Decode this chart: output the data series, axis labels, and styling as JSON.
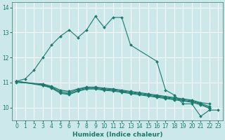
{
  "xlabel": "Humidex (Indice chaleur)",
  "xlim": [
    -0.5,
    23.5
  ],
  "ylim": [
    9.5,
    14.2
  ],
  "yticks": [
    10,
    11,
    12,
    13,
    14
  ],
  "xticks": [
    0,
    1,
    2,
    3,
    4,
    5,
    6,
    7,
    8,
    9,
    10,
    11,
    12,
    13,
    14,
    15,
    16,
    17,
    18,
    19,
    20,
    21,
    22,
    23
  ],
  "background_color": "#cce8ea",
  "grid_color": "#ffffff",
  "line_color": "#1a7a6e",
  "lines": [
    {
      "x": [
        0,
        1,
        2,
        3,
        4,
        5,
        6,
        7,
        8,
        9,
        10,
        11,
        12,
        13,
        16,
        17,
        18,
        19,
        20,
        21,
        22,
        23
      ],
      "y": [
        11.05,
        11.15,
        11.5,
        12.0,
        12.5,
        12.85,
        13.1,
        12.8,
        13.1,
        13.65,
        13.2,
        13.6,
        13.6,
        12.5,
        11.85,
        10.7,
        10.5,
        10.15,
        10.15,
        9.65,
        9.9,
        9.9
      ]
    },
    {
      "x": [
        0,
        3,
        4,
        5,
        6,
        7,
        8,
        9,
        10,
        11,
        12,
        13,
        14,
        15,
        16,
        17,
        18,
        19,
        20,
        21,
        22
      ],
      "y": [
        11.0,
        10.95,
        10.85,
        10.7,
        10.65,
        10.75,
        10.82,
        10.82,
        10.78,
        10.75,
        10.7,
        10.65,
        10.6,
        10.55,
        10.5,
        10.45,
        10.4,
        10.35,
        10.3,
        10.2,
        10.15
      ]
    },
    {
      "x": [
        0,
        3,
        4,
        5,
        6,
        7,
        8,
        9,
        10,
        11,
        12,
        13,
        14,
        15,
        16,
        17,
        18,
        19,
        20,
        21,
        22
      ],
      "y": [
        11.05,
        10.92,
        10.82,
        10.65,
        10.6,
        10.72,
        10.8,
        10.8,
        10.75,
        10.72,
        10.67,
        10.62,
        10.57,
        10.52,
        10.47,
        10.42,
        10.37,
        10.32,
        10.27,
        10.17,
        10.05
      ]
    },
    {
      "x": [
        0,
        3,
        4,
        5,
        6,
        7,
        8,
        9,
        10,
        11,
        12,
        13,
        14,
        15,
        16,
        17,
        18,
        19,
        20,
        21,
        22
      ],
      "y": [
        11.05,
        10.9,
        10.8,
        10.6,
        10.55,
        10.68,
        10.77,
        10.77,
        10.72,
        10.69,
        10.64,
        10.59,
        10.54,
        10.49,
        10.44,
        10.39,
        10.34,
        10.29,
        10.24,
        10.14,
        10.0
      ]
    },
    {
      "x": [
        0,
        3,
        4,
        5,
        6,
        7,
        8,
        9,
        10,
        11,
        12,
        13,
        14,
        15,
        16,
        17,
        18,
        19,
        20,
        21,
        22
      ],
      "y": [
        11.05,
        10.88,
        10.78,
        10.57,
        10.52,
        10.65,
        10.74,
        10.74,
        10.69,
        10.66,
        10.61,
        10.56,
        10.51,
        10.46,
        10.41,
        10.36,
        10.31,
        10.26,
        10.21,
        10.11,
        9.97
      ]
    }
  ]
}
